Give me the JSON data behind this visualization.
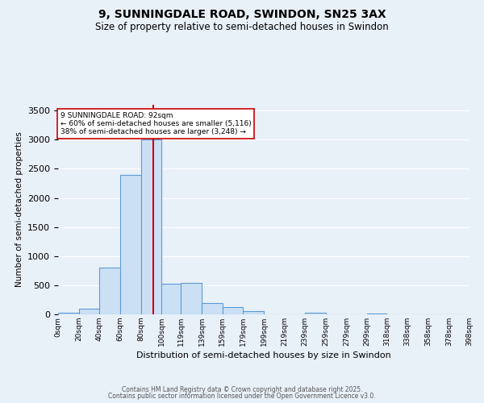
{
  "title_line1": "9, SUNNINGDALE ROAD, SWINDON, SN25 3AX",
  "title_line2": "Size of property relative to semi-detached houses in Swindon",
  "xlabel": "Distribution of semi-detached houses by size in Swindon",
  "ylabel": "Number of semi-detached properties",
  "bin_edges": [
    0,
    20,
    40,
    60,
    80,
    100,
    119,
    139,
    159,
    179,
    199,
    219,
    239,
    259,
    279,
    299,
    318,
    338,
    358,
    378,
    398
  ],
  "bar_heights": [
    30,
    100,
    800,
    2400,
    3000,
    520,
    540,
    200,
    120,
    60,
    0,
    0,
    30,
    0,
    0,
    20,
    0,
    0,
    0,
    0
  ],
  "bar_facecolor": "#cce0f5",
  "bar_edgecolor": "#5b9bd5",
  "vline_x": 92,
  "vline_color": "#cc0000",
  "annotation_text": "9 SUNNINGDALE ROAD: 92sqm\n← 60% of semi-detached houses are smaller (5,116)\n38% of semi-detached houses are larger (3,248) →",
  "annotation_box_edgecolor": "#cc0000",
  "annotation_box_facecolor": "#ffffff",
  "ylim": [
    0,
    3600
  ],
  "background_color": "#e8f0f8",
  "grid_color": "#ffffff",
  "footer_line1": "Contains HM Land Registry data © Crown copyright and database right 2025.",
  "footer_line2": "Contains public sector information licensed under the Open Government Licence v3.0.",
  "tick_labels": [
    "0sqm",
    "20sqm",
    "40sqm",
    "60sqm",
    "80sqm",
    "100sqm",
    "119sqm",
    "139sqm",
    "159sqm",
    "179sqm",
    "199sqm",
    "219sqm",
    "239sqm",
    "259sqm",
    "279sqm",
    "299sqm",
    "318sqm",
    "338sqm",
    "358sqm",
    "378sqm",
    "398sqm"
  ]
}
